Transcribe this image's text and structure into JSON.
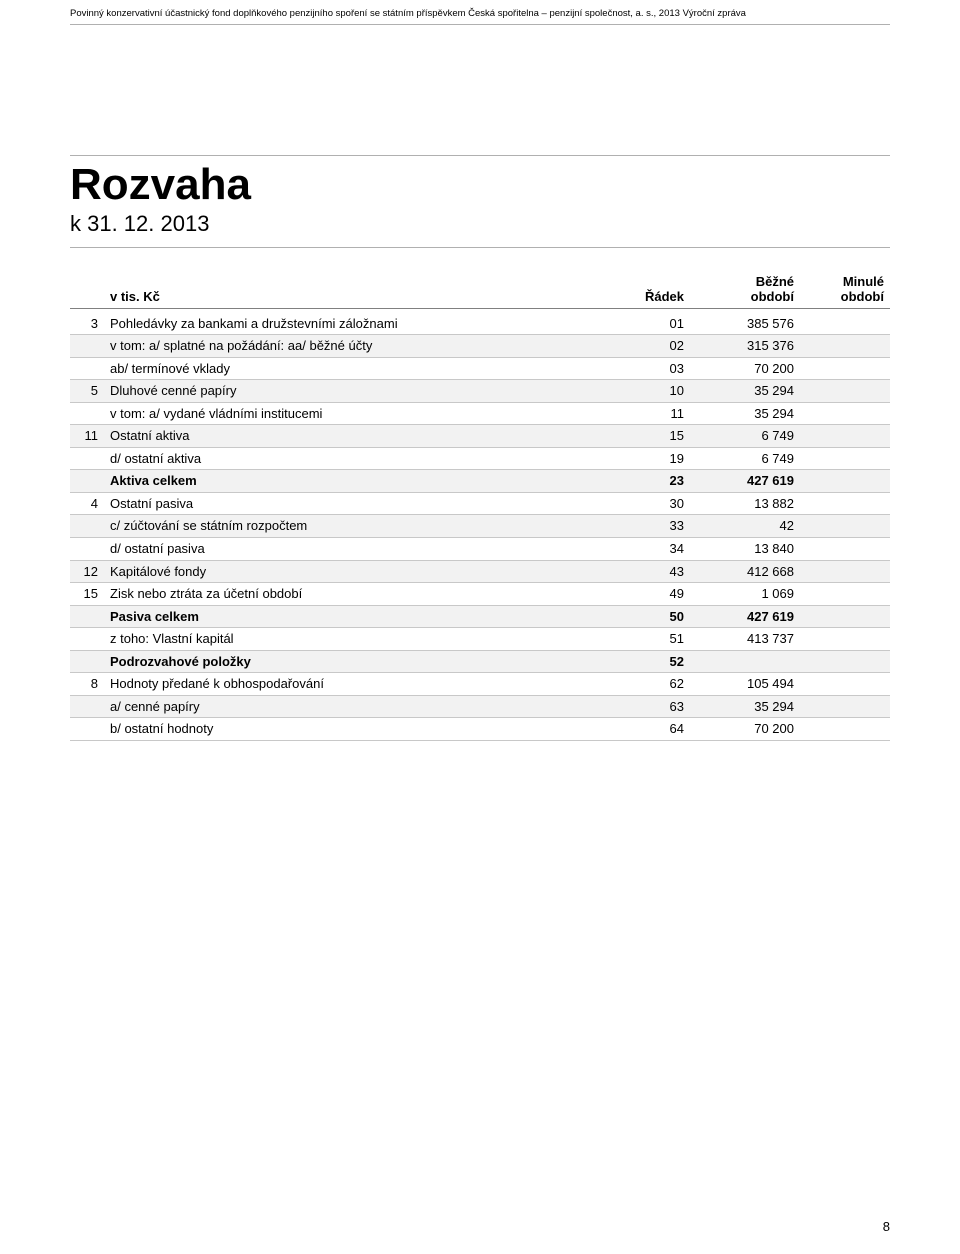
{
  "header": {
    "text": "Povinný konzervativní účastnický fond doplňkového penzijního spoření se státním příspěvkem Česká spořitelna – penzijní společnost, a. s., 2013 Výroční zpráva"
  },
  "title": "Rozvaha",
  "subtitle": "k 31. 12. 2013",
  "unit_label": "v tis. Kč",
  "columns": {
    "radek": "Řádek",
    "bezne_1": "Běžné",
    "bezne_2": "období",
    "minule_1": "Minulé",
    "minule_2": "období"
  },
  "rows": [
    {
      "n": "3",
      "desc": "Pohledávky za bankami a družstevními záložnami",
      "r": "01",
      "b": "385 576",
      "m": "",
      "shade": false,
      "bold": false
    },
    {
      "n": "",
      "desc": "v tom: a/ splatné na požádání: aa/ běžné účty",
      "r": "02",
      "b": "315 376",
      "m": "",
      "shade": true,
      "bold": false
    },
    {
      "n": "",
      "desc": "ab/ termínové vklady",
      "r": "03",
      "b": "70 200",
      "m": "",
      "shade": false,
      "bold": false
    },
    {
      "n": "5",
      "desc": "Dluhové cenné papíry",
      "r": "10",
      "b": "35 294",
      "m": "",
      "shade": true,
      "bold": false
    },
    {
      "n": "",
      "desc": "v tom: a/ vydané vládními institucemi",
      "r": "11",
      "b": "35 294",
      "m": "",
      "shade": false,
      "bold": false
    },
    {
      "n": "11",
      "desc": "Ostatní aktiva",
      "r": "15",
      "b": "6 749",
      "m": "",
      "shade": true,
      "bold": false
    },
    {
      "n": "",
      "desc": "d/ ostatní aktiva",
      "r": "19",
      "b": "6 749",
      "m": "",
      "shade": false,
      "bold": false
    },
    {
      "n": "",
      "desc": "Aktiva celkem",
      "r": "23",
      "b": "427 619",
      "m": "",
      "shade": true,
      "bold": true
    },
    {
      "n": "4",
      "desc": "Ostatní pasiva",
      "r": "30",
      "b": "13 882",
      "m": "",
      "shade": false,
      "bold": false
    },
    {
      "n": "",
      "desc": "c/ zúčtování se státním rozpočtem",
      "r": "33",
      "b": "42",
      "m": "",
      "shade": true,
      "bold": false
    },
    {
      "n": "",
      "desc": "d/ ostatní pasiva",
      "r": "34",
      "b": "13 840",
      "m": "",
      "shade": false,
      "bold": false
    },
    {
      "n": "12",
      "desc": "Kapitálové fondy",
      "r": "43",
      "b": "412 668",
      "m": "",
      "shade": true,
      "bold": false
    },
    {
      "n": "15",
      "desc": "Zisk nebo ztráta za účetní období",
      "r": "49",
      "b": "1 069",
      "m": "",
      "shade": false,
      "bold": false
    },
    {
      "n": "",
      "desc": "Pasiva celkem",
      "r": "50",
      "b": "427 619",
      "m": "",
      "shade": true,
      "bold": true
    },
    {
      "n": "",
      "desc": "z toho: Vlastní kapitál",
      "r": "51",
      "b": "413 737",
      "m": "",
      "shade": false,
      "bold": false
    },
    {
      "n": "",
      "desc": "Podrozvahové položky",
      "r": "52",
      "b": "",
      "m": "",
      "shade": true,
      "bold": true
    },
    {
      "n": "8",
      "desc": "Hodnoty předané k obhospodařování",
      "r": "62",
      "b": "105 494",
      "m": "",
      "shade": false,
      "bold": false
    },
    {
      "n": "",
      "desc": "a/ cenné papíry",
      "r": "63",
      "b": "35 294",
      "m": "",
      "shade": true,
      "bold": false
    },
    {
      "n": "",
      "desc": "b/ ostatní hodnoty",
      "r": "64",
      "b": "70 200",
      "m": "",
      "shade": false,
      "bold": false
    }
  ],
  "colors": {
    "shade_bg": "#f2f2f2",
    "line": "#c8c8c8",
    "heavy_line": "#808080"
  },
  "page_number": "8"
}
